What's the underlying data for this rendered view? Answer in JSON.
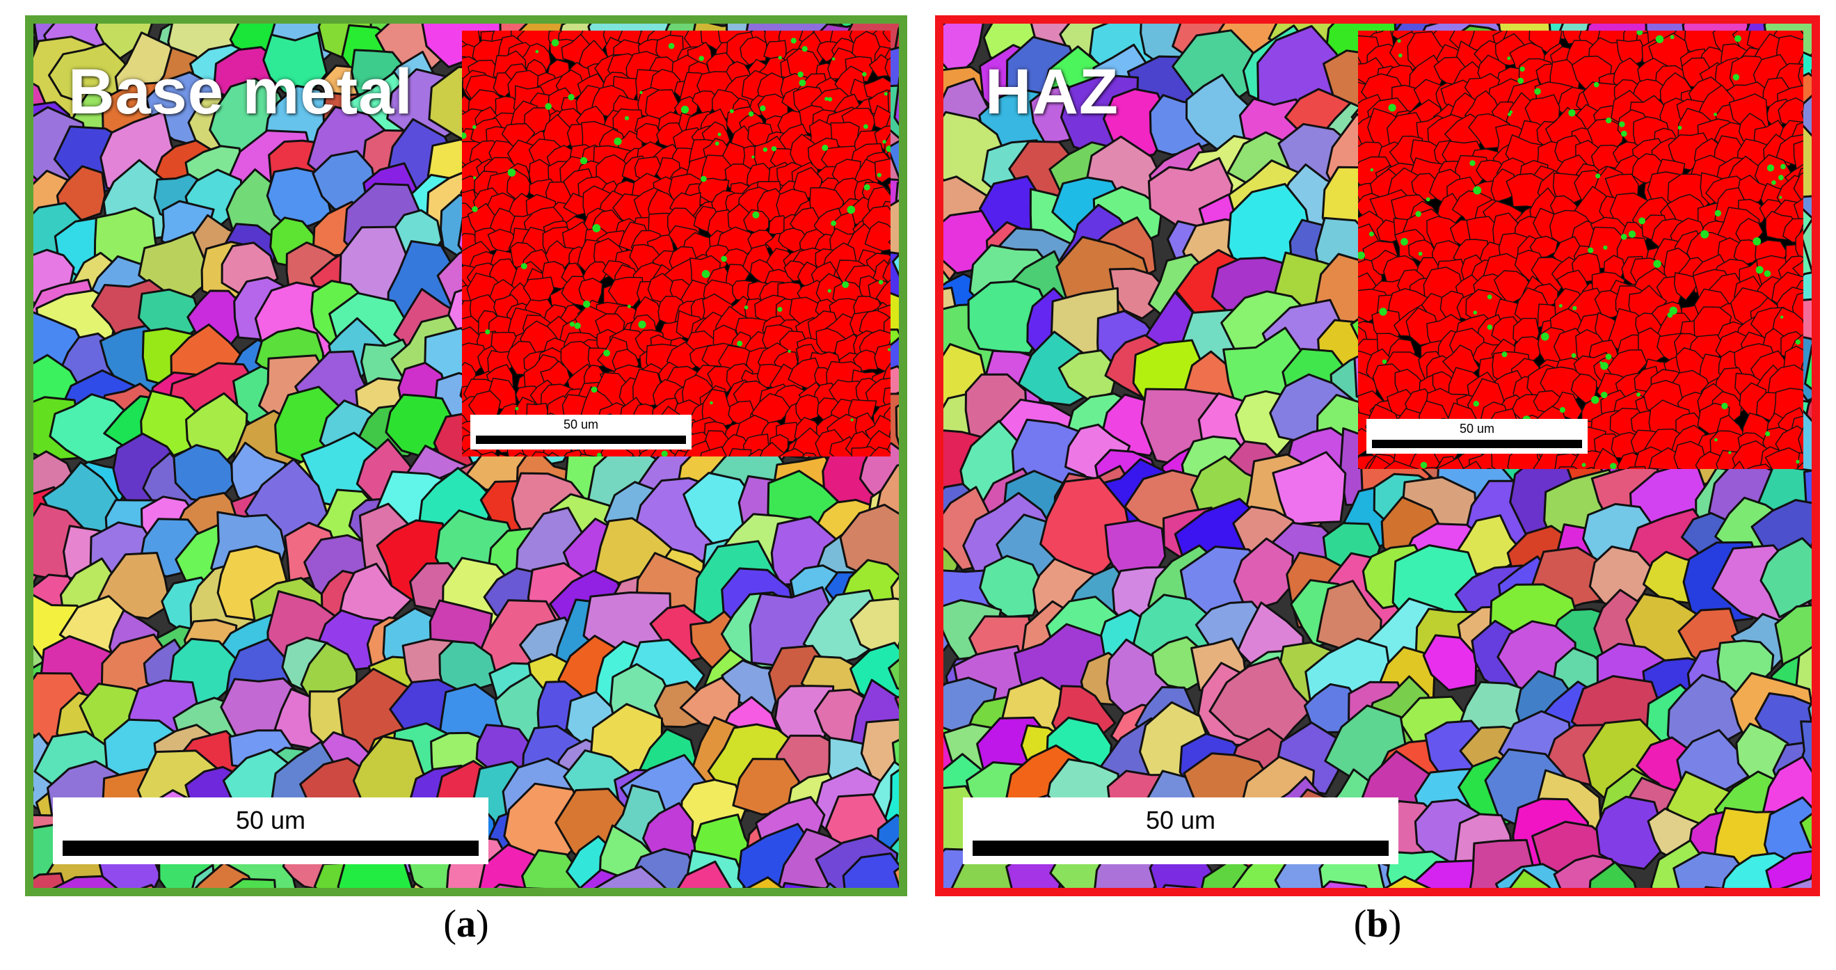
{
  "panel_a": {
    "label": "Base metal",
    "border_color": "#5aa436",
    "main_scalebar": "50 um",
    "inset_scalebar": "50 um",
    "caption_letter": "a",
    "inset_phase_colors": {
      "matrix": "#ff0000",
      "second_phase": "#22e022",
      "boundaries": "#000000"
    }
  },
  "panel_b": {
    "label": "HAZ",
    "border_color": "#f2141a",
    "main_scalebar": "50 um",
    "inset_scalebar": "50 um",
    "caption_letter": "b",
    "inset_phase_colors": {
      "matrix": "#ff0000",
      "second_phase": "#22e022",
      "boundaries": "#000000"
    }
  },
  "caption_open": "(",
  "caption_close": ")"
}
